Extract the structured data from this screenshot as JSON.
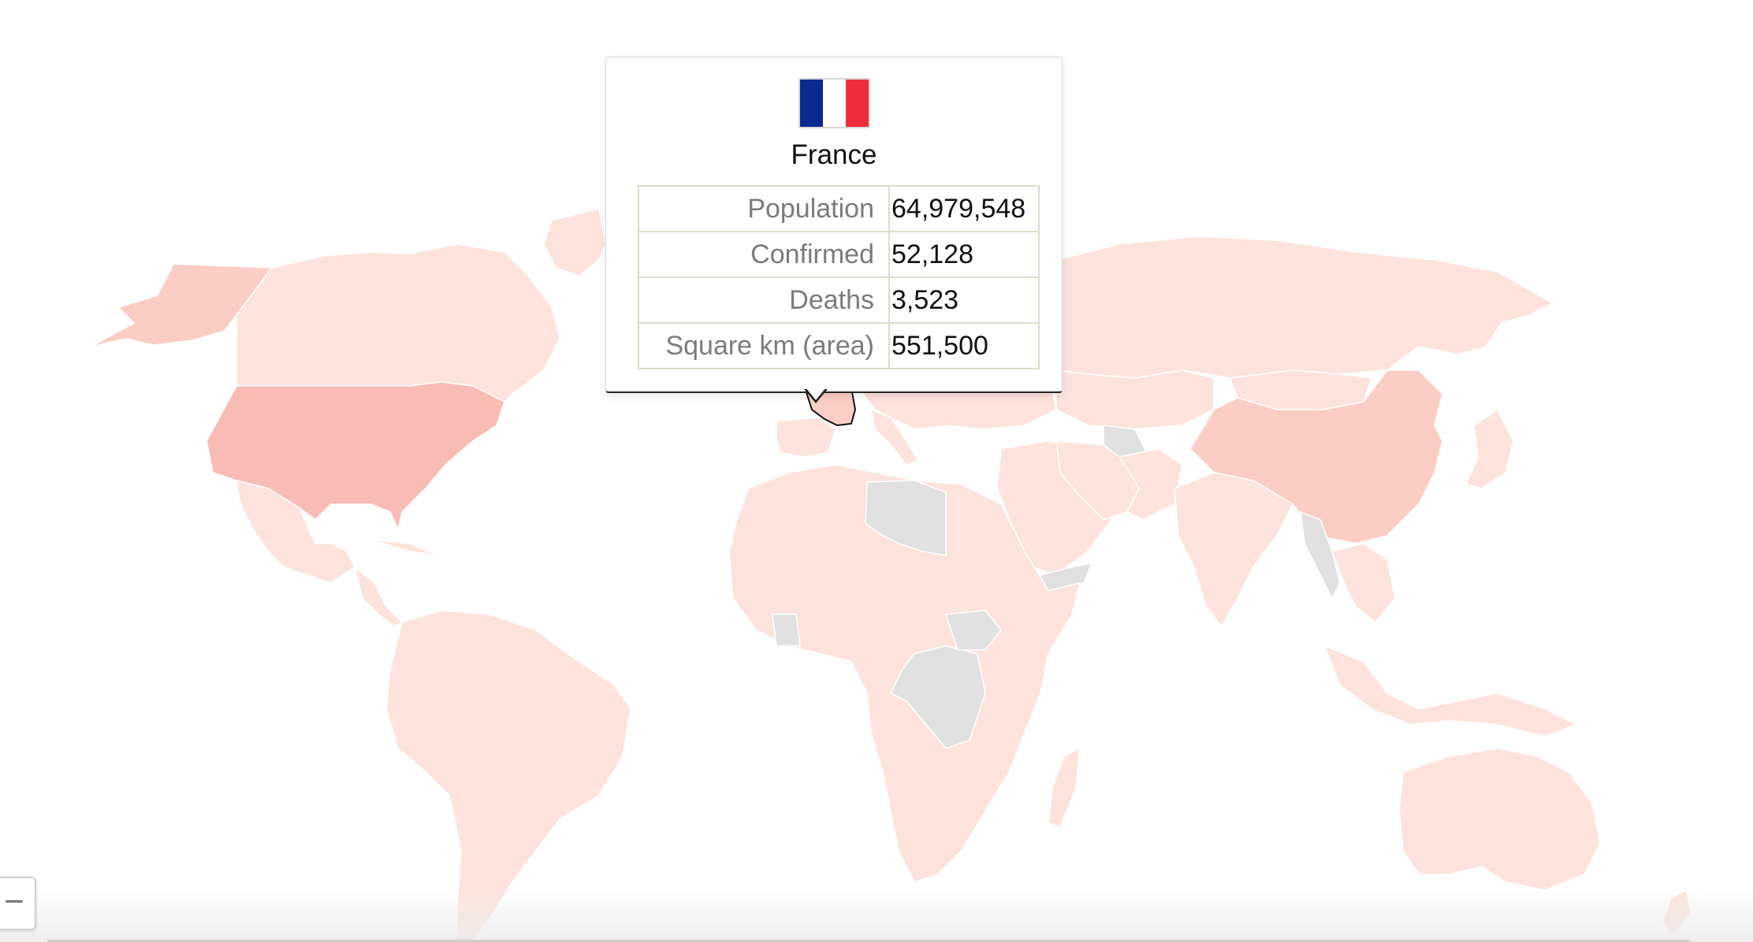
{
  "tooltip": {
    "country": "France",
    "flag_colors": [
      "#0a2a8f",
      "#ffffff",
      "#ee2d3c"
    ],
    "rows": [
      {
        "label": "Population",
        "value": "64,979,548"
      },
      {
        "label": "Confirmed",
        "value": "52,128"
      },
      {
        "label": "Deaths",
        "value": "3,523"
      },
      {
        "label": "Square km (area)",
        "value": "551,500"
      }
    ]
  },
  "map": {
    "colors": {
      "light": "#fde3dc",
      "mid": "#fbcdc4",
      "dark": "#f8bcb4",
      "no_data": "#e1e1e1",
      "border": "#ffffff",
      "highlight_outline": "#111111"
    }
  },
  "controls": {
    "zoom_out_label": "−"
  }
}
